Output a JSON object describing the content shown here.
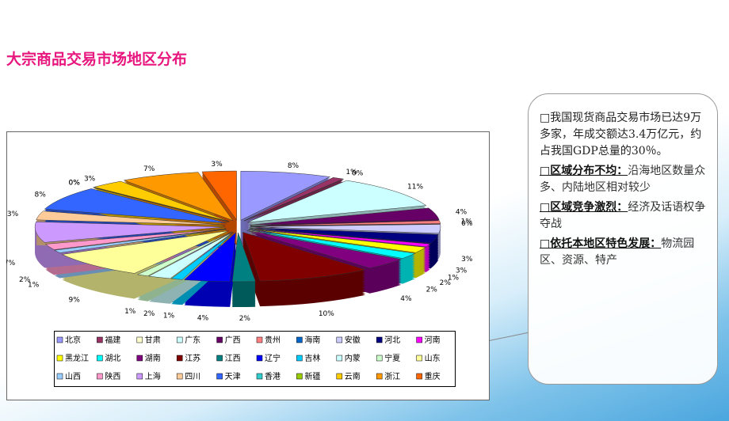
{
  "chart_data": {
    "type": "pie",
    "title": "大宗商品交易市场地区分布",
    "categories": [
      "北京",
      "福建",
      "甘肃",
      "广东",
      "广西",
      "贵州",
      "海南",
      "安徽",
      "河北",
      "河南",
      "黑龙江",
      "湖北",
      "湖南",
      "江苏",
      "江西",
      "辽宁",
      "吉林",
      "内蒙",
      "宁夏",
      "山东",
      "山西",
      "陕西",
      "上海",
      "四川",
      "天津",
      "香港",
      "新疆",
      "云南",
      "浙江",
      "重庆"
    ],
    "values": [
      8,
      1,
      0,
      11,
      4,
      1,
      0,
      3,
      3,
      1,
      2,
      2,
      4,
      10,
      2,
      4,
      1,
      2,
      1,
      9,
      1,
      2,
      7,
      3,
      8,
      0,
      0,
      3,
      7,
      3
    ],
    "value_labels": [
      "8%",
      "1%",
      "0%",
      "11%",
      "4%",
      "1%",
      "0%",
      "3%",
      "3%",
      "1%",
      "2%",
      "2%",
      "4%",
      "10%",
      "2%",
      "4%",
      "1%",
      "2%",
      "1%",
      "9%",
      "1%",
      "2%",
      "7%",
      "3%",
      "8%",
      "0%",
      "0%",
      "3%",
      "7%",
      "3%"
    ],
    "colors": [
      "#9999ff",
      "#993366",
      "#ffffcc",
      "#ccffff",
      "#660066",
      "#ff8080",
      "#0066cc",
      "#ccccff",
      "#000080",
      "#ff00ff",
      "#ffff00",
      "#00ffff",
      "#800080",
      "#800000",
      "#008080",
      "#0000ff",
      "#00ccff",
      "#ccffff",
      "#ccffcc",
      "#ffff99",
      "#99ccff",
      "#ff99cc",
      "#cc99ff",
      "#ffcc99",
      "#3366ff",
      "#33cccc",
      "#99cc00",
      "#ffcc00",
      "#ff9900",
      "#ff6600"
    ]
  },
  "notes": {
    "intro": "□我国现货商品交易市场已达9万多家，年成交额达3.4万亿元，约占我国GDP总量的30％。",
    "points": [
      {
        "heading": "□区域分布不均：",
        "text": "沿海地区数量众多、内陆地区相对较少"
      },
      {
        "heading": "□区域竞争激烈：",
        "text": "经济及话语权争夺战"
      },
      {
        "heading": "□依托本地区特色发展：",
        "text": "物流园区、资源、特产"
      }
    ]
  }
}
